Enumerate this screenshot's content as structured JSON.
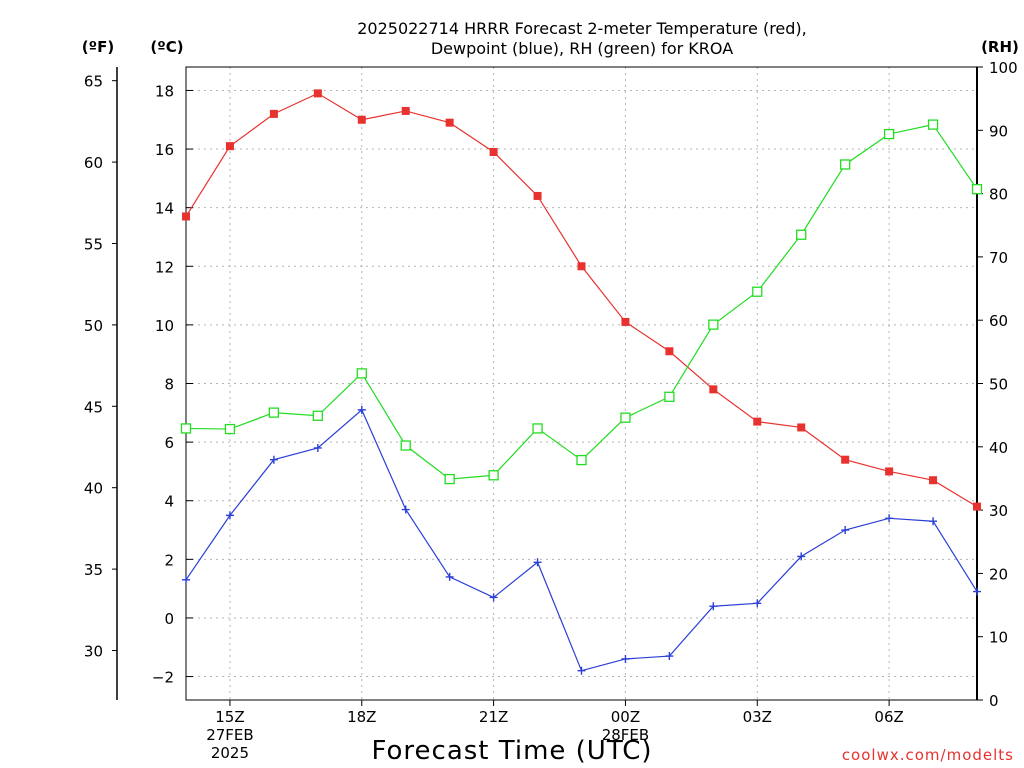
{
  "title_line1": "2025022714 HRRR Forecast 2-meter Temperature (red),",
  "title_line2": "Dewpoint (blue), RH (green) for KROA",
  "credit": "coolwx.com/modelts",
  "chart_data": {
    "type": "line",
    "title": "2025022714 HRRR Forecast 2-meter Temperature (red), Dewpoint (blue), RH (green) for KROA",
    "xlabel": "Forecast Time (UTC)",
    "x_hours_utc": [
      14,
      15,
      16,
      17,
      18,
      19,
      20,
      21,
      22,
      23,
      24,
      25,
      26,
      27,
      28,
      29,
      30,
      31,
      32
    ],
    "x_ticks": [
      {
        "hour": 15,
        "lines": [
          "15Z",
          "27FEB",
          "2025"
        ]
      },
      {
        "hour": 18,
        "lines": [
          "18Z"
        ]
      },
      {
        "hour": 21,
        "lines": [
          "21Z"
        ]
      },
      {
        "hour": 24,
        "lines": [
          "00Z",
          "28FEB"
        ]
      },
      {
        "hour": 27,
        "lines": [
          "03Z"
        ]
      },
      {
        "hour": 30,
        "lines": [
          "06Z"
        ]
      }
    ],
    "xlim": [
      14,
      32
    ],
    "axes": {
      "celsius": {
        "label": "(ºC)",
        "ticks": [
          "18",
          "16",
          "14",
          "12",
          "10",
          "8",
          "6",
          "4",
          "2",
          "0",
          "−2"
        ],
        "tick_values": [
          18,
          16,
          14,
          12,
          10,
          8,
          6,
          4,
          2,
          0,
          -2
        ],
        "lim": [
          -2.8,
          18.8
        ]
      },
      "fahrenheit": {
        "label": "(ºF)",
        "ticks": [
          "65",
          "60",
          "55",
          "50",
          "45",
          "40",
          "35",
          "30"
        ],
        "tick_values": [
          65,
          60,
          55,
          50,
          45,
          40,
          35,
          30
        ]
      },
      "rh": {
        "label": "(RH)",
        "ticks": [
          "100",
          "90",
          "80",
          "70",
          "60",
          "50",
          "40",
          "30",
          "20",
          "10",
          "0"
        ],
        "tick_values": [
          100,
          90,
          80,
          70,
          60,
          50,
          40,
          30,
          20,
          10,
          0
        ],
        "lim": [
          0,
          100
        ]
      }
    },
    "grid": true,
    "series": [
      {
        "axis": "celsius",
        "color": "#e8322f",
        "marker": "filled-square",
        "values": [
          13.7,
          16.1,
          17.2,
          17.9,
          17.0,
          17.3,
          16.9,
          15.9,
          14.4,
          12.0,
          10.1,
          9.1,
          7.8,
          6.7,
          6.5,
          5.4,
          5.0,
          4.7,
          3.8
        ]
      },
      {
        "axis": "celsius",
        "color": "#2b3fd6",
        "marker": "plus",
        "values": [
          1.3,
          3.5,
          5.4,
          5.8,
          7.1,
          3.7,
          1.4,
          0.7,
          1.9,
          -1.8,
          -1.4,
          -1.3,
          0.4,
          0.5,
          2.1,
          3.0,
          3.4,
          3.3,
          0.9
        ]
      },
      {
        "axis": "rh",
        "color": "#22dd22",
        "marker": "open-square",
        "values": [
          42.9,
          42.8,
          45.4,
          44.9,
          51.6,
          40.2,
          34.9,
          35.5,
          42.9,
          37.9,
          44.6,
          47.9,
          59.3,
          64.5,
          73.5,
          84.6,
          89.4,
          90.9,
          80.7
        ]
      }
    ]
  }
}
